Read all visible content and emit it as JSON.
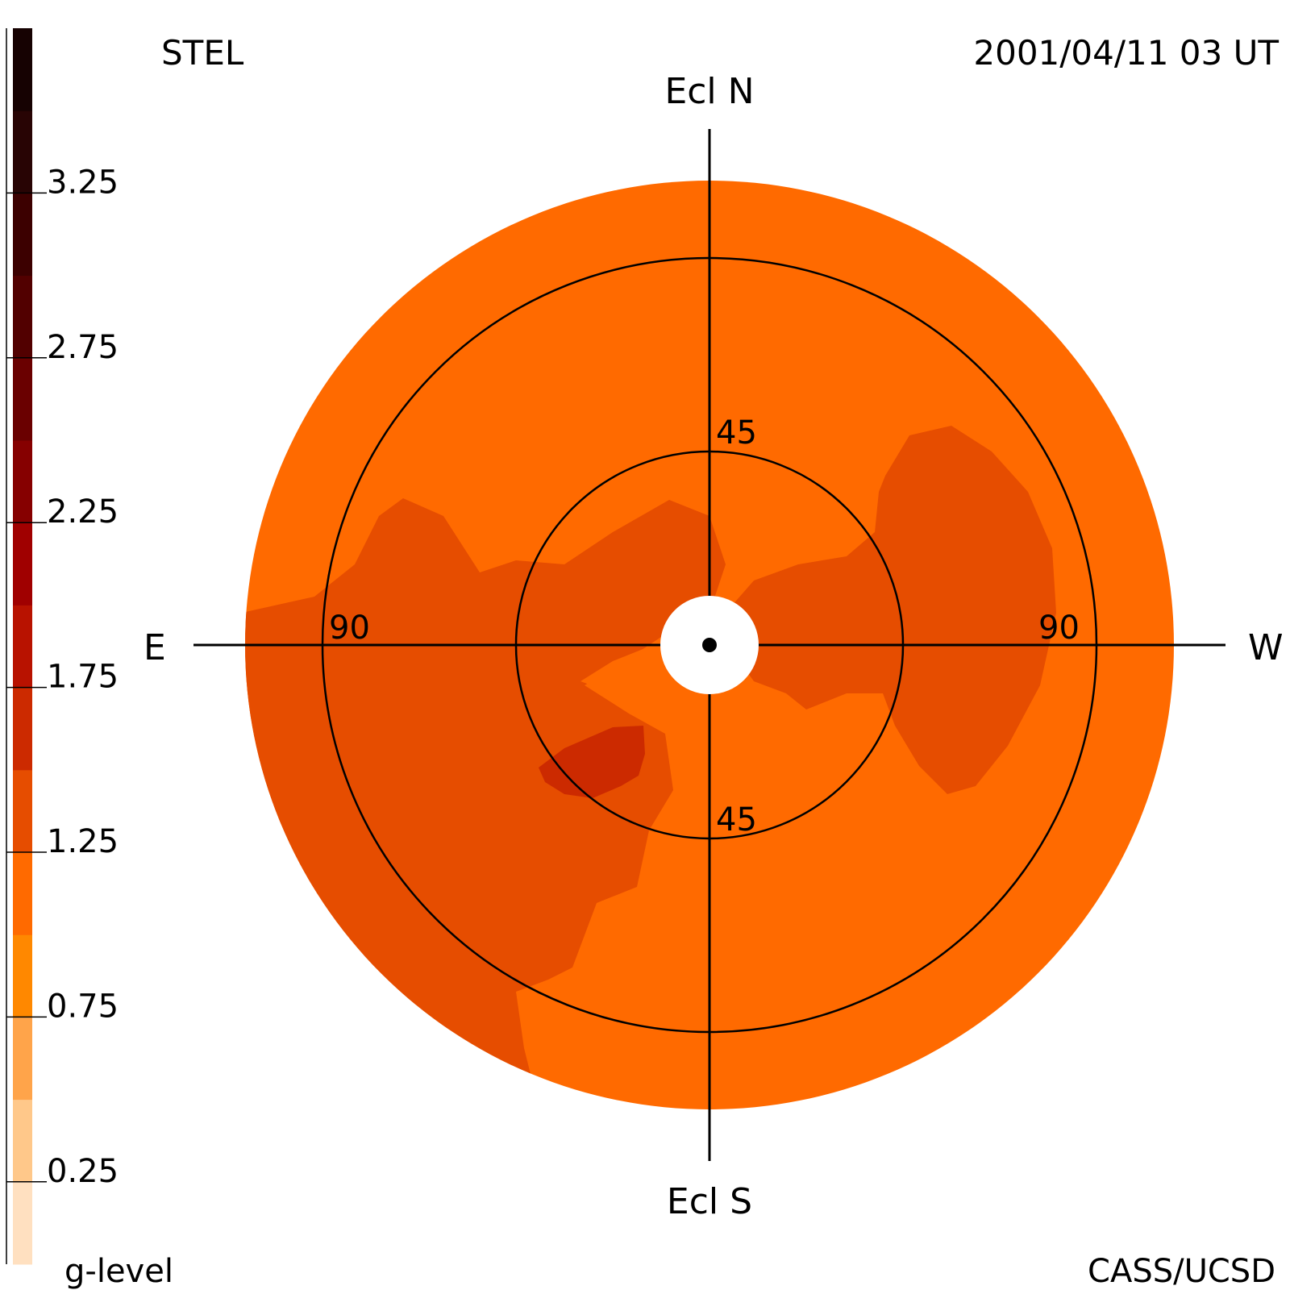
{
  "header": {
    "instrument": "STEL",
    "timestamp": "2001/04/11 03 UT"
  },
  "footer": {
    "credit": "CASS/UCSD"
  },
  "colorbar": {
    "label": "g-level",
    "tick_labels": [
      "3.25",
      "2.75",
      "2.25",
      "1.75",
      "1.25",
      "0.75",
      "0.25"
    ],
    "tick_values": [
      3.25,
      2.75,
      2.25,
      1.75,
      1.25,
      0.75,
      0.25
    ],
    "range": [
      0,
      3.75
    ],
    "bands": [
      {
        "from": 0.0,
        "to": 0.25,
        "color": "#ffe0c0"
      },
      {
        "from": 0.25,
        "to": 0.5,
        "color": "#ffc88a"
      },
      {
        "from": 0.5,
        "to": 0.75,
        "color": "#ffa44a"
      },
      {
        "from": 0.75,
        "to": 1.0,
        "color": "#ff8800"
      },
      {
        "from": 1.0,
        "to": 1.25,
        "color": "#ff6a00"
      },
      {
        "from": 1.25,
        "to": 1.5,
        "color": "#e64d00"
      },
      {
        "from": 1.5,
        "to": 1.75,
        "color": "#cc2a00"
      },
      {
        "from": 1.75,
        "to": 2.0,
        "color": "#b81200"
      },
      {
        "from": 2.0,
        "to": 2.25,
        "color": "#a00000"
      },
      {
        "from": 2.25,
        "to": 2.5,
        "color": "#860000"
      },
      {
        "from": 2.5,
        "to": 2.75,
        "color": "#6a0000"
      },
      {
        "from": 2.75,
        "to": 3.0,
        "color": "#520000"
      },
      {
        "from": 3.0,
        "to": 3.25,
        "color": "#3c0000"
      },
      {
        "from": 3.25,
        "to": 3.5,
        "color": "#280404"
      },
      {
        "from": 3.5,
        "to": 3.75,
        "color": "#160202"
      }
    ]
  },
  "sky_map": {
    "directions": {
      "north": "Ecl N",
      "south": "Ecl S",
      "east": "E",
      "west": "W"
    },
    "ring_labels": {
      "inner_top": "45",
      "inner_bottom": "45",
      "outer_left": "90",
      "outer_right": "90"
    },
    "colors": {
      "background_level": "#ff6a00",
      "enhanced_level": "#e64d00",
      "peak_level": "#cc2a00",
      "occulter": "#ffffff"
    }
  }
}
